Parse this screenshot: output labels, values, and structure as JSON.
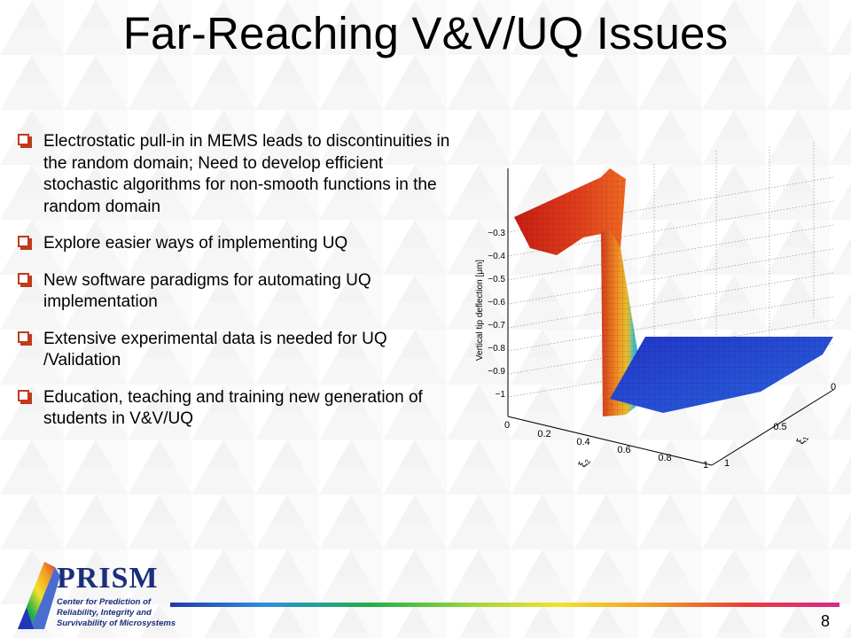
{
  "slide": {
    "title": "Far-Reaching V&V/UQ Issues",
    "page_number": "8"
  },
  "bullets": [
    {
      "text": "Electrostatic pull-in in MEMS leads to discontinuities in the random domain; Need to develop efficient stochastic algorithms for non-smooth functions in the random domain"
    },
    {
      "text": "Explore easier ways of implementing UQ"
    },
    {
      "text": "New software paradigms for automating UQ implementation"
    },
    {
      "text": "Extensive experimental data is needed for UQ /Validation"
    },
    {
      "text": "Education, teaching and training new generation of students in V&V/UQ"
    }
  ],
  "plot": {
    "type": "surface-3d",
    "zlabel": "Vertical tip deflection [μm]",
    "z_ticks": [
      "−0.3",
      "−0.4",
      "−0.5",
      "−0.6",
      "−0.7",
      "−0.8",
      "−0.9",
      "−1"
    ],
    "xi2_ticks": [
      "0",
      "0.2",
      "0.4",
      "0.6",
      "0.8",
      "1"
    ],
    "xi1_ticks": [
      "0",
      "0.5",
      "1"
    ],
    "xi2_label": "ξ",
    "xi2_sub": "2",
    "xi1_label": "ξ",
    "xi1_sub": "1"
  },
  "logo": {
    "name": "PRISM",
    "tagline_1": "Center for Prediction of",
    "tagline_2": "Reliability, Integrity and",
    "tagline_3": "Survivability of Microsystems"
  },
  "colors": {
    "bullet": "#c03a1a",
    "logo_text": "#1b2e7a",
    "surface_high": "#d0281a",
    "surface_low": "#1e3ad0"
  }
}
